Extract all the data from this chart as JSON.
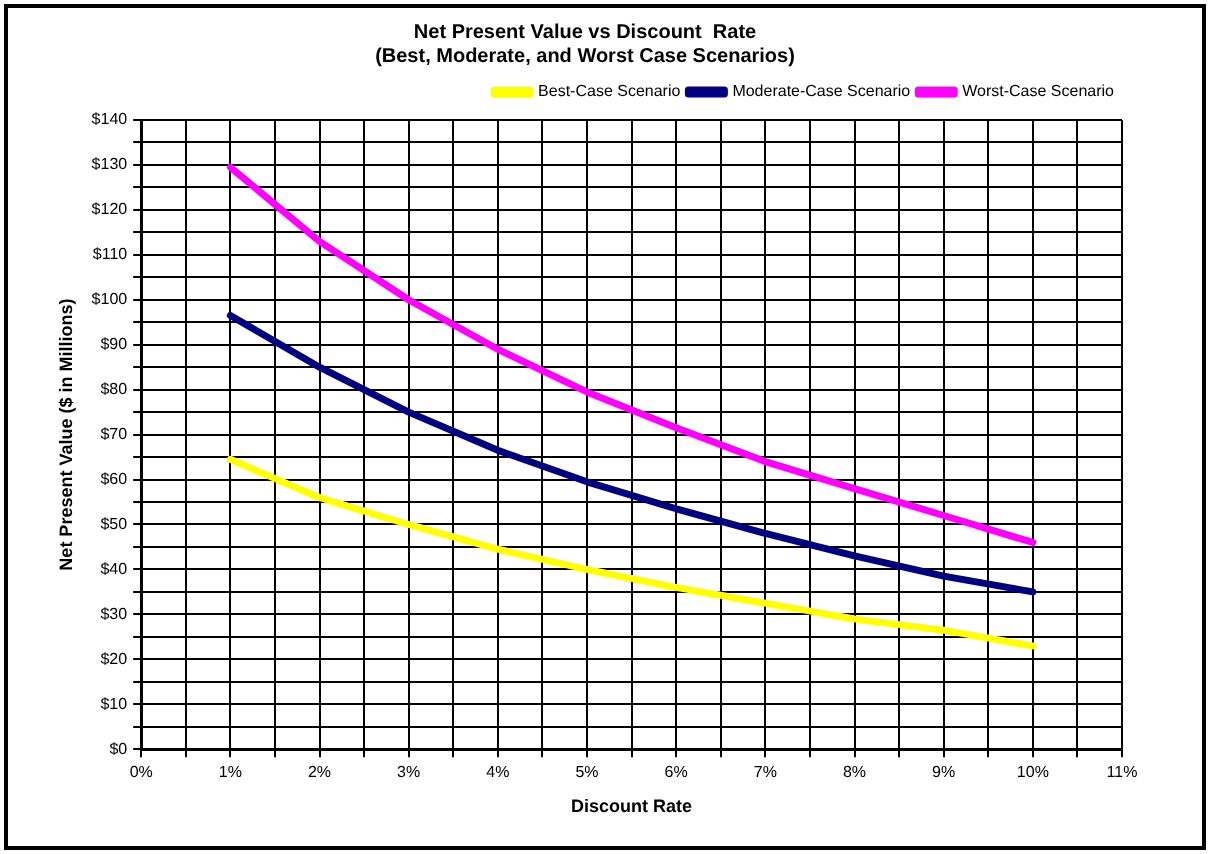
{
  "chart_data": {
    "type": "line",
    "title": "Net Present Value vs Discount  Rate\n(Best, Moderate, and Worst Case Scenarios)",
    "xlabel": "Discount Rate",
    "ylabel": "Net Present Value ($ in Millions)",
    "x": [
      1,
      2,
      3,
      4,
      5,
      6,
      7,
      8,
      9,
      10
    ],
    "series": [
      {
        "name": "Best-Case Scenario",
        "color": "#ffff00",
        "values": [
          64.5,
          56,
          50,
          44.5,
          40,
          36,
          32.5,
          29,
          26.5,
          23
        ]
      },
      {
        "name": "Moderate-Case Scenario",
        "color": "#000080",
        "values": [
          96.5,
          85,
          75,
          66.5,
          59.5,
          53.5,
          48,
          43,
          38.5,
          35
        ]
      },
      {
        "name": "Worst-Case Scenario",
        "color": "#ff00ff",
        "values": [
          129.5,
          113,
          100,
          89,
          79.5,
          71.5,
          64,
          58,
          52,
          46
        ]
      }
    ],
    "xlim": [
      0,
      11
    ],
    "ylim": [
      0,
      140
    ],
    "xticks": [
      {
        "value": 0,
        "label": "0%"
      },
      {
        "value": 0.5,
        "label": null
      },
      {
        "value": 1,
        "label": "1%"
      },
      {
        "value": 1.5,
        "label": null
      },
      {
        "value": 2,
        "label": "2%"
      },
      {
        "value": 2.5,
        "label": null
      },
      {
        "value": 3,
        "label": "3%"
      },
      {
        "value": 3.5,
        "label": null
      },
      {
        "value": 4,
        "label": "4%"
      },
      {
        "value": 4.5,
        "label": null
      },
      {
        "value": 5,
        "label": "5%"
      },
      {
        "value": 5.5,
        "label": null
      },
      {
        "value": 6,
        "label": "6%"
      },
      {
        "value": 6.5,
        "label": null
      },
      {
        "value": 7,
        "label": "7%"
      },
      {
        "value": 7.5,
        "label": null
      },
      {
        "value": 8,
        "label": "8%"
      },
      {
        "value": 8.5,
        "label": null
      },
      {
        "value": 9,
        "label": "9%"
      },
      {
        "value": 9.5,
        "label": null
      },
      {
        "value": 10,
        "label": "10%"
      },
      {
        "value": 10.5,
        "label": null
      },
      {
        "value": 11,
        "label": "11%"
      }
    ],
    "yticks": [
      {
        "value": 0,
        "label": "$0"
      },
      {
        "value": 5,
        "label": null
      },
      {
        "value": 10,
        "label": "$10"
      },
      {
        "value": 15,
        "label": null
      },
      {
        "value": 20,
        "label": "$20"
      },
      {
        "value": 25,
        "label": null
      },
      {
        "value": 30,
        "label": "$30"
      },
      {
        "value": 35,
        "label": null
      },
      {
        "value": 40,
        "label": "$40"
      },
      {
        "value": 45,
        "label": null
      },
      {
        "value": 50,
        "label": "$50"
      },
      {
        "value": 55,
        "label": null
      },
      {
        "value": 60,
        "label": "$60"
      },
      {
        "value": 65,
        "label": null
      },
      {
        "value": 70,
        "label": "$70"
      },
      {
        "value": 75,
        "label": null
      },
      {
        "value": 80,
        "label": "$80"
      },
      {
        "value": 85,
        "label": null
      },
      {
        "value": 90,
        "label": "$90"
      },
      {
        "value": 95,
        "label": null
      },
      {
        "value": 100,
        "label": "$100"
      },
      {
        "value": 105,
        "label": null
      },
      {
        "value": 110,
        "label": "$110"
      },
      {
        "value": 115,
        "label": null
      },
      {
        "value": 120,
        "label": "$120"
      },
      {
        "value": 125,
        "label": null
      },
      {
        "value": 130,
        "label": "$130"
      },
      {
        "value": 135,
        "label": null
      },
      {
        "value": 140,
        "label": "$140"
      }
    ],
    "grid": true,
    "legend": "top right",
    "marker": "none",
    "line_style": "solid"
  }
}
